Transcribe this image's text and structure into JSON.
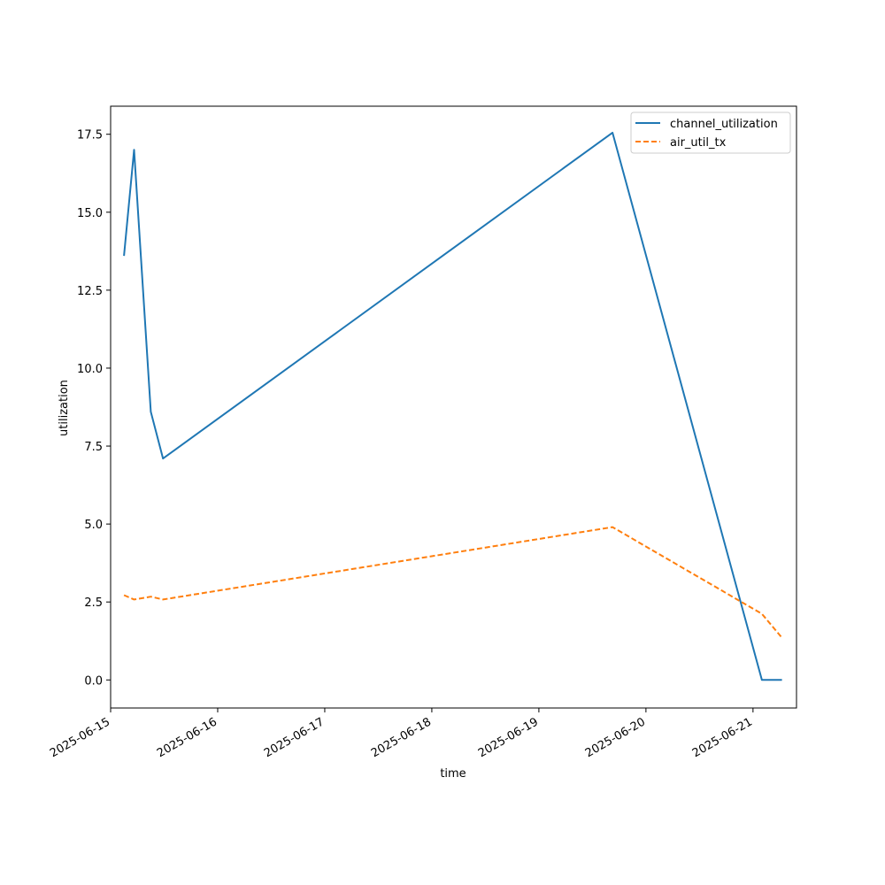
{
  "chart_data": {
    "type": "line",
    "xlabel": "time",
    "ylabel": "utilization",
    "x_type": "date",
    "xlim": [
      "2025-06-15T00:00",
      "2025-06-21T09:45"
    ],
    "ylim": [
      -0.9,
      18.4
    ],
    "x_ticks": [
      "2025-06-15",
      "2025-06-16",
      "2025-06-17",
      "2025-06-18",
      "2025-06-19",
      "2025-06-20",
      "2025-06-21"
    ],
    "y_ticks": [
      "0.0",
      "2.5",
      "5.0",
      "7.5",
      "10.0",
      "12.5",
      "15.0",
      "17.5"
    ],
    "grid": false,
    "legend_position": "top-right",
    "series": [
      {
        "name": "channel_utilization",
        "color": "#1f77b4",
        "style": "solid",
        "points": [
          [
            "2025-06-15T03:00",
            13.6
          ],
          [
            "2025-06-15T05:15",
            17.0
          ],
          [
            "2025-06-15T09:00",
            8.6
          ],
          [
            "2025-06-15T11:45",
            7.1
          ],
          [
            "2025-06-19T16:30",
            17.55
          ],
          [
            "2025-06-21T02:00",
            0.0
          ],
          [
            "2025-06-21T06:30",
            0.0
          ]
        ]
      },
      {
        "name": "air_util_tx",
        "color": "#ff7f0e",
        "style": "dashed",
        "points": [
          [
            "2025-06-15T03:00",
            2.72
          ],
          [
            "2025-06-15T05:15",
            2.58
          ],
          [
            "2025-06-15T09:00",
            2.67
          ],
          [
            "2025-06-15T11:45",
            2.58
          ],
          [
            "2025-06-19T16:30",
            4.9
          ],
          [
            "2025-06-21T02:00",
            2.12
          ],
          [
            "2025-06-21T06:30",
            1.35
          ]
        ]
      }
    ]
  }
}
